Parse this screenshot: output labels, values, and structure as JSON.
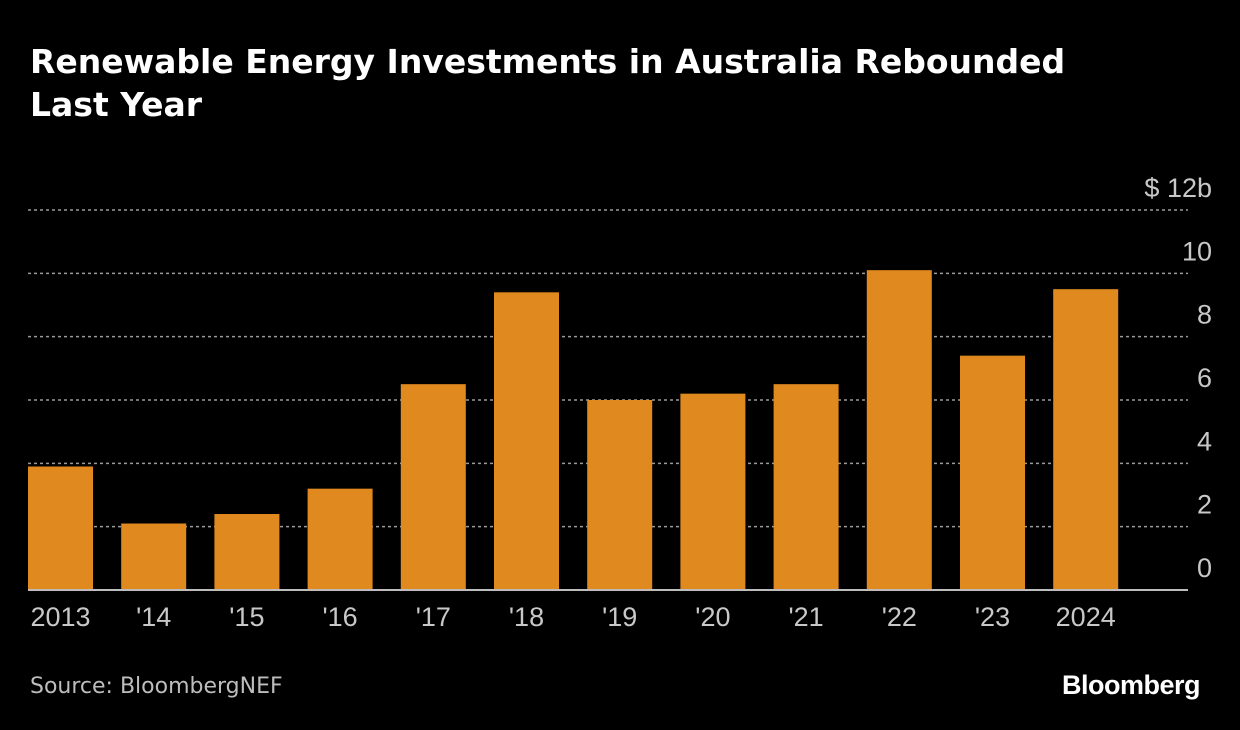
{
  "title": "Renewable Energy Investments in Australia Rebounded Last Year",
  "source": "Source: BloombergNEF",
  "brand": "Bloomberg",
  "colors": {
    "bar": "#e0891f",
    "grid": "#9a9a9a",
    "axis": "#bdbdbd"
  },
  "chart_data": {
    "type": "bar",
    "title": "Renewable Energy Investments in Australia Rebounded Last Year",
    "xlabel": "",
    "ylabel": "$ billions",
    "ylim": [
      0,
      12
    ],
    "yticks": [
      0,
      2,
      4,
      6,
      8,
      10,
      12
    ],
    "ytick_labels": [
      "0",
      "2",
      "4",
      "6",
      "8",
      "10",
      "$ 12b"
    ],
    "grid": true,
    "categories": [
      "2013",
      "'14",
      "'15",
      "'16",
      "'17",
      "'18",
      "'19",
      "'20",
      "'21",
      "'22",
      "'23",
      "2024"
    ],
    "values": [
      3.9,
      2.1,
      2.4,
      3.2,
      6.5,
      9.4,
      6.0,
      6.2,
      6.5,
      10.1,
      7.4,
      9.5
    ]
  }
}
